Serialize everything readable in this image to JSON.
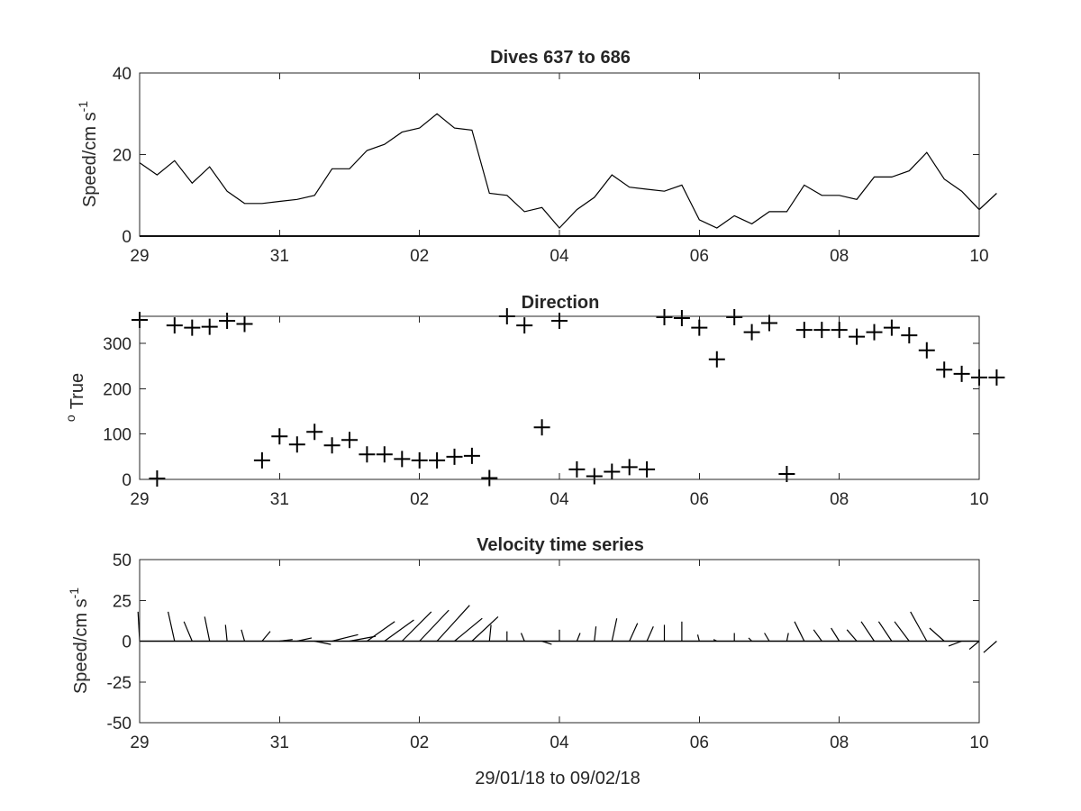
{
  "chart_data": [
    {
      "type": "line",
      "title": "Dives 637 to 686",
      "ylabel": "Speed/cm s",
      "ylabel_exponent": "-1",
      "xlim": [
        29,
        41
      ],
      "ylim": [
        0,
        40
      ],
      "x_tick_labels": [
        "29",
        "31",
        "02",
        "04",
        "06",
        "08",
        "10"
      ],
      "y_tick_labels": [
        "0",
        "20",
        "40"
      ],
      "grid": false,
      "x": [
        29.0,
        29.25,
        29.5,
        29.75,
        30.0,
        30.25,
        30.5,
        30.75,
        31.0,
        31.25,
        31.5,
        31.75,
        32.0,
        32.25,
        32.5,
        32.75,
        33.0,
        33.25,
        33.5,
        33.75,
        34.0,
        34.25,
        34.5,
        34.75,
        35.0,
        35.25,
        35.5,
        35.75,
        36.0,
        36.25,
        36.5,
        36.75,
        37.0,
        37.25,
        37.5,
        37.75,
        38.0,
        38.25,
        38.5,
        38.75,
        39.0,
        39.25,
        39.5,
        39.75,
        40.0,
        40.25,
        40.5,
        40.75,
        41.0,
        41.25
      ],
      "y": [
        18.0,
        15.0,
        18.5,
        13.0,
        17.0,
        11.0,
        8.0,
        8.0,
        8.5,
        9.0,
        10.0,
        16.5,
        16.5,
        21.0,
        22.5,
        25.5,
        26.5,
        30.0,
        26.5,
        26.0,
        10.5,
        10.0,
        6.0,
        7.0,
        2.0,
        6.5,
        9.5,
        15.0,
        12.0,
        11.5,
        11.0,
        12.5,
        4.0,
        2.0,
        5.0,
        3.0,
        6.0,
        6.0,
        12.5,
        10.0,
        10.0,
        9.0,
        14.5,
        14.5,
        16.0,
        20.5,
        14.0,
        11.0,
        6.5,
        10.5
      ]
    },
    {
      "type": "scatter",
      "title": "Direction",
      "ylabel": "True",
      "ylabel_prefix": "o",
      "xlim": [
        29,
        41
      ],
      "ylim": [
        0,
        360
      ],
      "x_tick_labels": [
        "29",
        "31",
        "02",
        "04",
        "06",
        "08",
        "10"
      ],
      "y_tick_labels": [
        "0",
        "100",
        "200",
        "300"
      ],
      "grid": false,
      "marker": "+",
      "x": [
        29.0,
        29.25,
        29.5,
        29.75,
        30.0,
        30.25,
        30.5,
        30.75,
        31.0,
        31.25,
        31.5,
        31.75,
        32.0,
        32.25,
        32.5,
        32.75,
        33.0,
        33.25,
        33.5,
        33.75,
        34.0,
        34.25,
        34.5,
        34.75,
        35.0,
        35.25,
        35.5,
        35.75,
        36.0,
        36.25,
        36.5,
        36.75,
        37.0,
        37.25,
        37.5,
        37.75,
        38.0,
        38.25,
        38.5,
        38.75,
        39.0,
        39.25,
        39.5,
        39.75,
        40.0,
        40.25,
        40.5,
        40.75,
        41.0,
        41.25
      ],
      "y": [
        352,
        2,
        340,
        335,
        337,
        350,
        343,
        42,
        95,
        77,
        105,
        75,
        87,
        55,
        55,
        45,
        42,
        42,
        50,
        52,
        3,
        360,
        340,
        115,
        350,
        22,
        7,
        17,
        27,
        22,
        358,
        356,
        335,
        265,
        358,
        325,
        345,
        12,
        330,
        330,
        330,
        315,
        325,
        335,
        318,
        285,
        242,
        233,
        225,
        225
      ]
    },
    {
      "type": "stick",
      "title": "Velocity time series",
      "ylabel": "Speed/cm s",
      "ylabel_exponent": "-1",
      "xlabel": "29/01/18 to 09/02/18",
      "xlim": [
        29,
        41
      ],
      "ylim": [
        -50,
        50
      ],
      "x_tick_labels": [
        "29",
        "31",
        "02",
        "04",
        "06",
        "08",
        "10"
      ],
      "y_tick_labels": [
        "-50",
        "-25",
        "0",
        "25",
        "50"
      ],
      "grid": false,
      "x": [
        29.0,
        29.25,
        29.5,
        29.75,
        30.0,
        30.25,
        30.5,
        30.75,
        31.0,
        31.25,
        31.5,
        31.75,
        32.0,
        32.25,
        32.5,
        32.75,
        33.0,
        33.25,
        33.5,
        33.75,
        34.0,
        34.25,
        34.5,
        34.75,
        35.0,
        35.25,
        35.5,
        35.75,
        36.0,
        36.25,
        36.5,
        36.75,
        37.0,
        37.25,
        37.5,
        37.75,
        38.0,
        38.25,
        38.5,
        38.75,
        39.0,
        39.25,
        39.5,
        39.75,
        40.0,
        40.25,
        40.5,
        40.75,
        41.0,
        41.25
      ],
      "u": [
        -1,
        0,
        -4,
        -5,
        -3,
        -1,
        -2,
        5,
        8,
        9,
        10,
        16,
        16,
        17,
        18,
        18,
        18,
        20,
        17,
        16,
        1,
        0,
        -2,
        6,
        0,
        2,
        1,
        3,
        5,
        4,
        0,
        0,
        -1,
        -2,
        0,
        -2,
        -3,
        1,
        -6,
        -5,
        -5,
        -6,
        -8,
        -8,
        -9,
        -10,
        -9,
        -8,
        -6,
        -8
      ],
      "v": [
        18,
        0,
        18,
        12,
        15,
        10,
        7,
        6,
        1,
        2,
        -2,
        4,
        3,
        12,
        13,
        18,
        19,
        22,
        14,
        15,
        10,
        6,
        5,
        -2,
        7,
        5,
        9,
        14,
        11,
        9,
        10,
        12,
        4,
        1,
        5,
        2,
        5,
        5,
        12,
        7,
        8,
        7,
        12,
        12,
        12,
        18,
        8,
        -3,
        -5,
        -7
      ]
    }
  ]
}
